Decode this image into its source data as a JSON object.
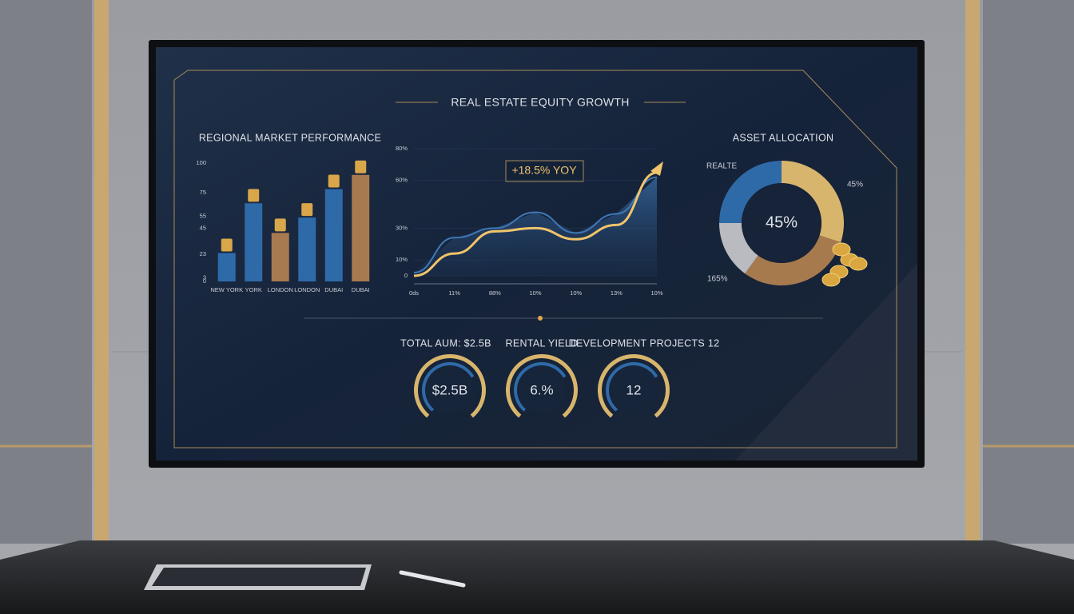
{
  "chart_data": [
    {
      "type": "bar",
      "title": "REGIONAL MARKET PERFORMANCE",
      "categories": [
        "NEW YORK",
        "YORK",
        "LONDON",
        "LONDON",
        "DUBAI",
        "DUBAI"
      ],
      "values": [
        24,
        66,
        41,
        54,
        78,
        90
      ],
      "colors": [
        "#2f6aa8",
        "#2f6aa8",
        "#a87a4f",
        "#2f6aa8",
        "#2f6aa8",
        "#a87a4f"
      ],
      "ylim": [
        0,
        100
      ],
      "yticks": [
        0,
        3,
        23,
        45,
        55,
        75,
        100
      ]
    },
    {
      "type": "line",
      "title": "REAL ESTATE EQUITY GROWTH",
      "annotation": "+18.5% YOY",
      "categories": [
        "0ds",
        "11%",
        "88%",
        "10%",
        "10%",
        "13%",
        "10%"
      ],
      "series": [
        {
          "color": "#3f78b8",
          "values": [
            2,
            24,
            30,
            40,
            27,
            39,
            62
          ]
        },
        {
          "color": "#f0c46a",
          "values": [
            0,
            14,
            28,
            30,
            23,
            32,
            65
          ]
        }
      ],
      "ylim": [
        0,
        80
      ],
      "yticks": [
        0,
        {
          "value": 10,
          "label": "10%"
        },
        {
          "value": 30,
          "label": "30%"
        },
        {
          "value": 60,
          "label": "60%"
        },
        {
          "value": 80,
          "label": "80%"
        }
      ]
    },
    {
      "type": "donut",
      "title": "ASSET ALLOCATION",
      "center_label": "45%",
      "categories": [
        "REALTE",
        null,
        null,
        null
      ],
      "values": [
        25,
        30,
        30,
        15
      ],
      "colors": [
        "#2f6aa8",
        "#d8b56c",
        "#a77a4e",
        "#b9bbc0"
      ],
      "annotations": [
        "45%",
        "165%"
      ]
    }
  ],
  "kpis": [
    {
      "label": "TOTAL AUM: $2.5B",
      "value": "$2.5B"
    },
    {
      "label": "RENTAL YIELD",
      "value": "6.%"
    },
    {
      "label": "DEVELOPMENT PROJECTS   12",
      "value": "12"
    }
  ]
}
